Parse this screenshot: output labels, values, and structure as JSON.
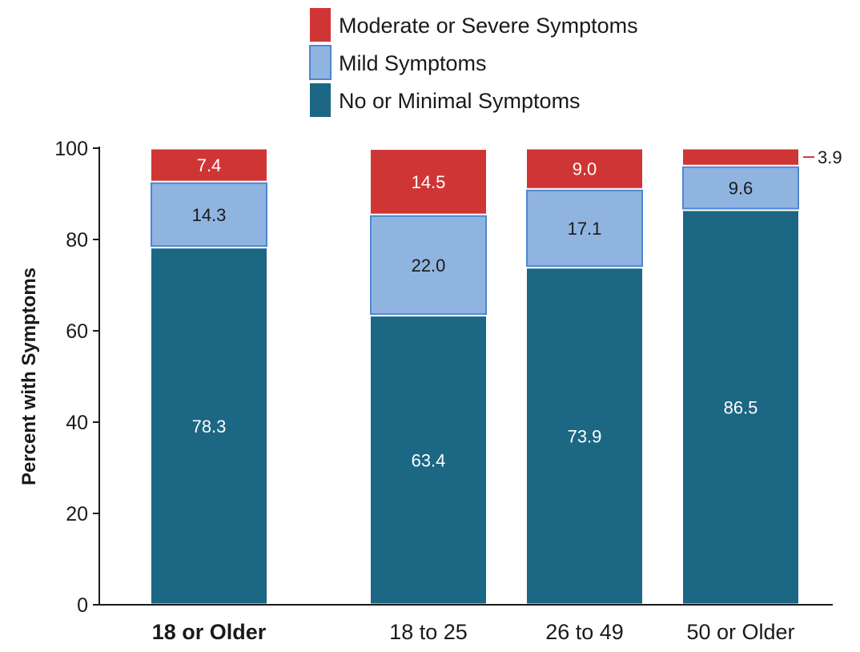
{
  "chart_data": {
    "type": "bar",
    "stacked": true,
    "ylabel": "Percent with Symptoms",
    "ylim": [
      0,
      100
    ],
    "yticks": [
      0,
      20,
      40,
      60,
      80,
      100
    ],
    "grid": false,
    "legend_position": "top",
    "categories": [
      "18 or Older",
      "18 to 25",
      "26 to 49",
      "50 or Older"
    ],
    "bold_categories": [
      "18 or Older"
    ],
    "series": [
      {
        "name": "No or Minimal Symptoms",
        "color": "#1c6784",
        "label_color": "#ffffff",
        "values": [
          78.3,
          63.4,
          73.9,
          86.5
        ]
      },
      {
        "name": "Mild Symptoms",
        "color": "#8fb4e0",
        "label_color": "#1a1a1a",
        "values": [
          14.3,
          22.0,
          17.1,
          9.6
        ]
      },
      {
        "name": "Moderate or Severe Symptoms",
        "color": "#cf3535",
        "label_color": "#ffffff",
        "values": [
          7.4,
          14.5,
          9.0,
          3.9
        ]
      }
    ],
    "value_labels": [
      [
        "78.3",
        "63.4",
        "73.9",
        "86.5"
      ],
      [
        "14.3",
        "22.0",
        "17.1",
        "9.6"
      ],
      [
        "7.4",
        "14.5",
        "9.0",
        "3.9"
      ]
    ],
    "outside_labels": [
      [
        3,
        2
      ]
    ],
    "legend_order": [
      "Moderate or Severe Symptoms",
      "Mild Symptoms",
      "No or Minimal Symptoms"
    ]
  }
}
